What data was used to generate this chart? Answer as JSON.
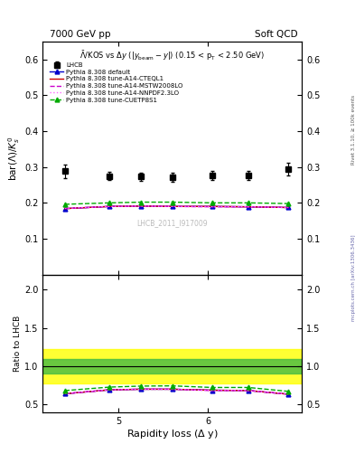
{
  "title_left": "7000 GeV pp",
  "title_right": "Soft QCD",
  "plot_title": "$\\bar{\\Lambda}$/KOS vs $\\Delta y$ ($|y_{\\mathrm{beam}}-y|$) (0.15 < p$_{\\mathrm{T}}$ < 2.50 GeV)",
  "ylabel_main": "bar($\\Lambda$)/$K^{0}_{s}$",
  "ylabel_ratio": "Ratio to LHCB",
  "xlabel": "Rapidity loss ($\\Delta$ y)",
  "watermark": "LHCB_2011_I917009",
  "right_label1": "Rivet 3.1.10, ≥ 100k events",
  "right_label2": "mcplots.cern.ch [arXiv:1306.3436]",
  "x_data": [
    4.4,
    4.9,
    5.25,
    5.6,
    6.05,
    6.45,
    6.9
  ],
  "lhcb_y": [
    0.288,
    0.275,
    0.273,
    0.272,
    0.277,
    0.277,
    0.295
  ],
  "lhcb_yerr": [
    0.018,
    0.012,
    0.012,
    0.012,
    0.012,
    0.012,
    0.018
  ],
  "pythia_default_y": [
    0.184,
    0.19,
    0.191,
    0.19,
    0.19,
    0.189,
    0.187
  ],
  "pythia_cteql1_y": [
    0.184,
    0.19,
    0.191,
    0.19,
    0.19,
    0.189,
    0.187
  ],
  "pythia_mstw_y": [
    0.184,
    0.19,
    0.191,
    0.19,
    0.189,
    0.189,
    0.187
  ],
  "pythia_nnpdf_y": [
    0.185,
    0.19,
    0.191,
    0.19,
    0.189,
    0.189,
    0.187
  ],
  "pythia_cuetp_y": [
    0.196,
    0.2,
    0.202,
    0.202,
    0.2,
    0.2,
    0.198
  ],
  "ratio_default": [
    0.64,
    0.691,
    0.699,
    0.699,
    0.686,
    0.682,
    0.634
  ],
  "ratio_cteql1": [
    0.64,
    0.691,
    0.699,
    0.699,
    0.686,
    0.682,
    0.634
  ],
  "ratio_mstw": [
    0.64,
    0.691,
    0.699,
    0.699,
    0.682,
    0.682,
    0.634
  ],
  "ratio_nnpdf": [
    0.643,
    0.691,
    0.699,
    0.699,
    0.682,
    0.682,
    0.634
  ],
  "ratio_cuetp": [
    0.681,
    0.727,
    0.74,
    0.743,
    0.722,
    0.722,
    0.671
  ],
  "ylim_main": [
    0.0,
    0.65
  ],
  "ylim_ratio": [
    0.4,
    2.2
  ],
  "yticks_main": [
    0.1,
    0.2,
    0.3,
    0.4,
    0.5,
    0.6
  ],
  "yticks_ratio": [
    0.5,
    1.0,
    1.5,
    2.0
  ],
  "xlim": [
    4.15,
    7.05
  ],
  "xticks": [
    5.0,
    6.0
  ],
  "color_lhcb": "#000000",
  "color_default": "#0000cc",
  "color_cteql1": "#cc0000",
  "color_mstw": "#cc00cc",
  "color_nnpdf": "#ff66ff",
  "color_cuetp": "#00aa00",
  "band_green_lo": 0.9,
  "band_green_hi": 1.1,
  "band_yellow_lo": 0.77,
  "band_yellow_hi": 1.23
}
